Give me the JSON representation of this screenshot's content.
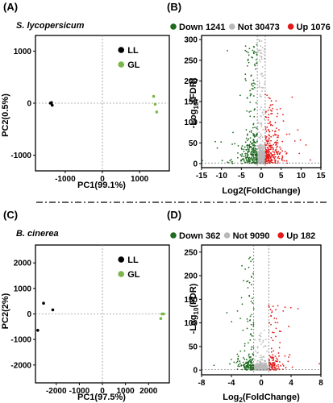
{
  "colors": {
    "down": "#1e6b1e",
    "not": "#b8b8b8",
    "up": "#e61919",
    "LL": "#000000",
    "GL": "#7ab648",
    "guide": "#9a9a9a"
  },
  "separator": "-·-·-·",
  "chart_data": [
    {
      "type": "scatter",
      "panel_label": "(A)",
      "title": "S. lycopersicum",
      "xlabel": "PC1(99.1%)",
      "ylabel": "PC2(0.5%)",
      "xlim": [
        -1800,
        1800
      ],
      "ylim": [
        -1300,
        1300
      ],
      "xticks": [
        -1000,
        0,
        1000
      ],
      "yticks": [
        1000,
        0,
        -1000
      ],
      "xticklabels": [
        "-1000",
        "0",
        "1000"
      ],
      "yticklabels": [
        "1000",
        "0",
        "-1000"
      ],
      "legend_position": "top-right",
      "series": [
        {
          "name": "LL",
          "color": "LL",
          "x": [
            -1400,
            -1370,
            -1350
          ],
          "y": [
            0,
            10,
            -40
          ]
        },
        {
          "name": "GL",
          "color": "GL",
          "x": [
            1380,
            1420,
            1460
          ],
          "y": [
            130,
            -20,
            -170
          ]
        }
      ]
    },
    {
      "type": "scatter",
      "subtype": "volcano",
      "panel_label": "(B)",
      "xlabel": "Log2(FoldChange)",
      "ylabel": "-Log10(FDR)",
      "xlim": [
        -15,
        15
      ],
      "ylim": [
        -10,
        310
      ],
      "xticks": [
        -15,
        -10,
        -5,
        0,
        5,
        10,
        15
      ],
      "yticks": [
        0,
        50,
        100,
        150,
        200,
        250,
        300
      ],
      "xticklabels": [
        "-15",
        "-10",
        "-5",
        "0",
        "5",
        "10",
        "15"
      ],
      "yticklabels": [
        "0",
        "50",
        "100",
        "150",
        "200",
        "250",
        "300"
      ],
      "vlines": [
        -1,
        1
      ],
      "hline": 1.3,
      "legend_position": "top",
      "series": [
        {
          "name": "Down 1241",
          "color": "down",
          "count": 1241
        },
        {
          "name": "Not 30473",
          "color": "not",
          "count": 30473
        },
        {
          "name": "Up 1076",
          "color": "up",
          "count": 1076
        }
      ]
    },
    {
      "type": "scatter",
      "panel_label": "(C)",
      "title": "B. cinerea",
      "xlabel": "PC1(97.5%)",
      "ylabel": "PC2(2%)",
      "xlim": [
        -2900,
        2900
      ],
      "ylim": [
        -2700,
        2700
      ],
      "xticks": [
        -2000,
        -1000,
        0,
        1000,
        2000
      ],
      "yticks": [
        2000,
        1000,
        0,
        -1000,
        -2000
      ],
      "xticklabels": [
        "-2000",
        "-1000",
        "0",
        "1000",
        "2000"
      ],
      "yticklabels": [
        "2000",
        "1000",
        "0",
        "-1000",
        "-2000"
      ],
      "legend_position": "top-right",
      "series": [
        {
          "name": "LL",
          "color": "LL",
          "x": [
            -2550,
            -2150,
            -2800
          ],
          "y": [
            420,
            160,
            -640
          ]
        },
        {
          "name": "GL",
          "color": "GL",
          "x": [
            2580,
            2650,
            2530
          ],
          "y": [
            0,
            0,
            -180
          ]
        }
      ]
    },
    {
      "type": "scatter",
      "subtype": "volcano",
      "panel_label": "(D)",
      "xlabel": "Log2(FoldChange)",
      "ylabel": "-Log10(FDR)",
      "xlim": [
        -8,
        8
      ],
      "ylim": [
        -10,
        265
      ],
      "xticks": [
        -8,
        -4,
        0,
        4,
        8
      ],
      "yticks": [
        0,
        50,
        100,
        150,
        200,
        250
      ],
      "xticklabels": [
        "-8",
        "-4",
        "0",
        "4",
        "8"
      ],
      "yticklabels": [
        "0",
        "50",
        "100",
        "150",
        "200",
        "250"
      ],
      "vlines": [
        -1,
        1
      ],
      "hline": 1.3,
      "legend_position": "top",
      "series": [
        {
          "name": "Down 362",
          "color": "down",
          "count": 362
        },
        {
          "name": "Not 9090",
          "color": "not",
          "count": 9090
        },
        {
          "name": "Up 182",
          "color": "up",
          "count": 182
        }
      ]
    }
  ]
}
